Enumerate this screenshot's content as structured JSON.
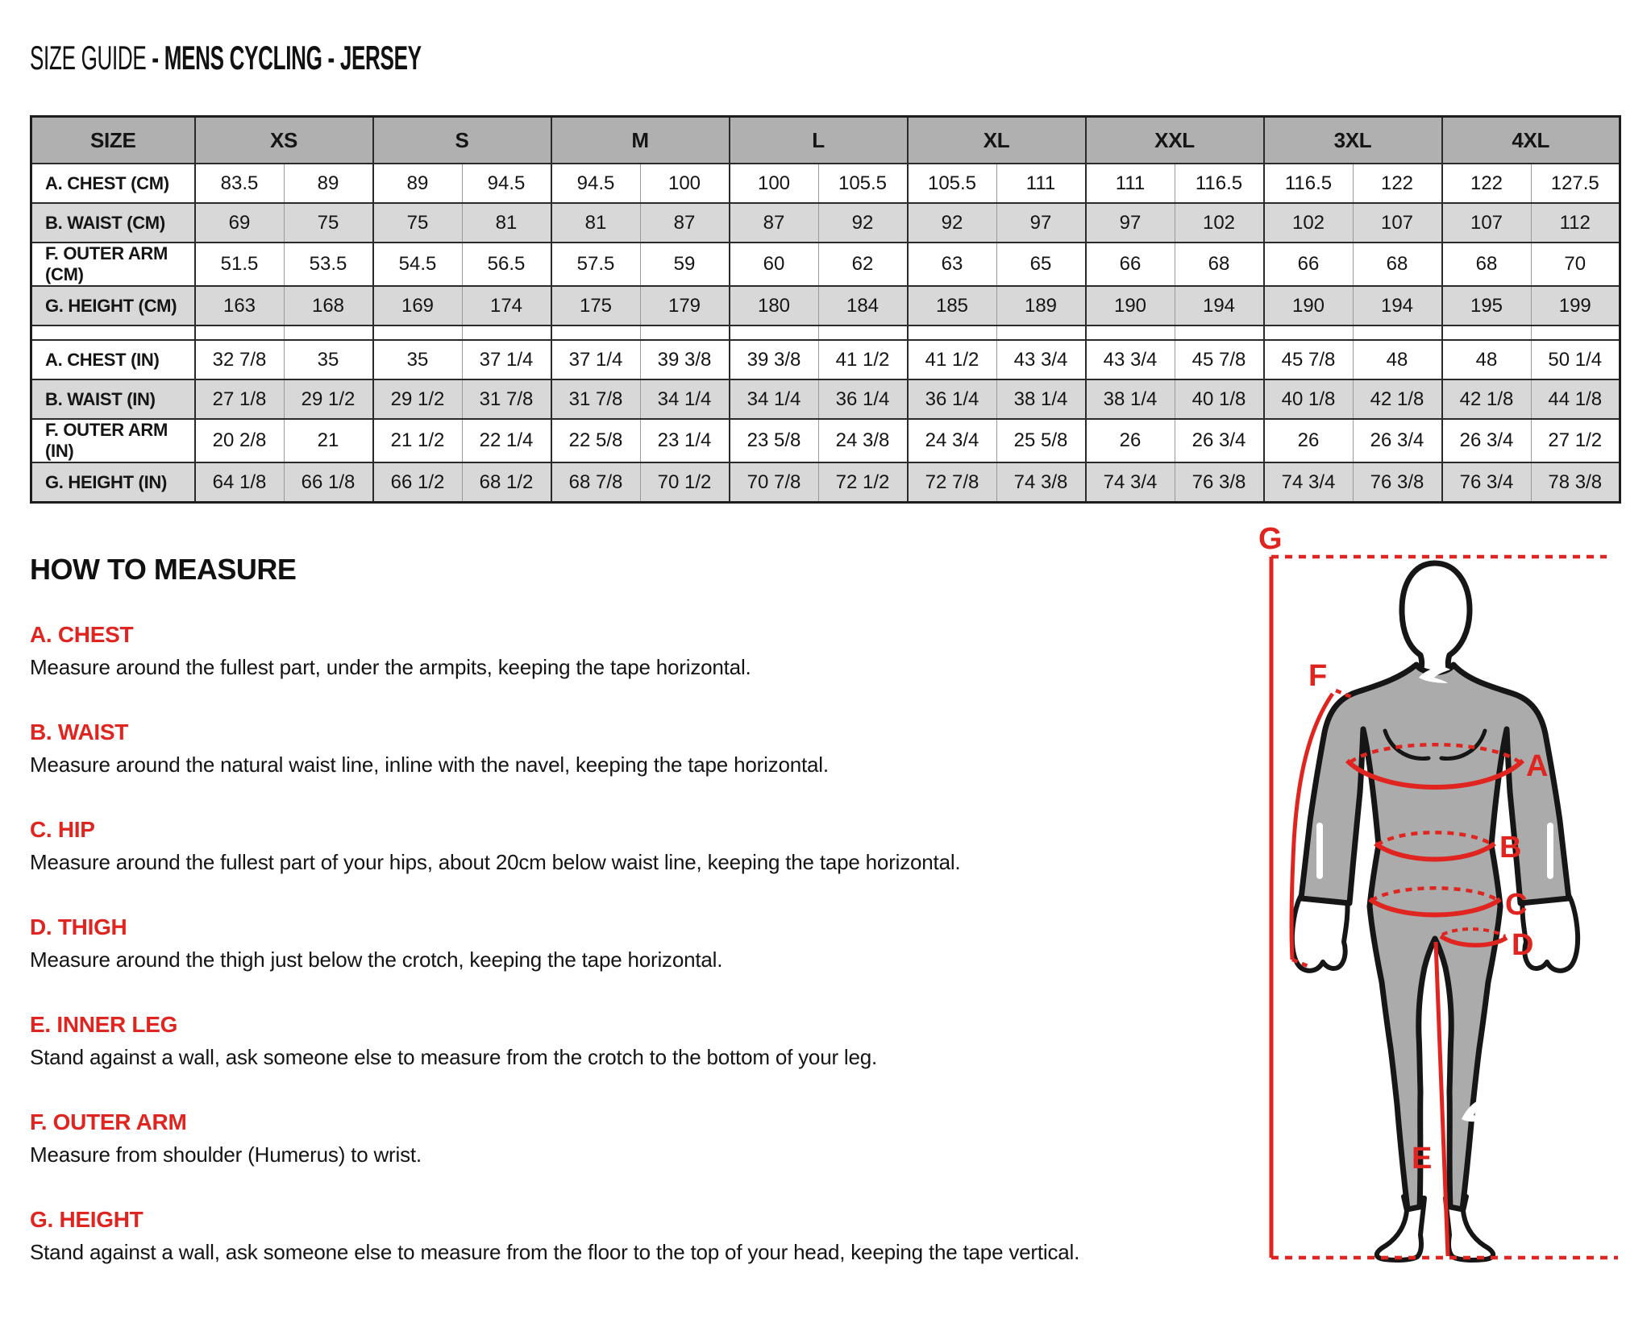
{
  "title": {
    "prefix": "SIZE GUIDE ",
    "emphasis": "- MENS CYCLING - JERSEY"
  },
  "size_table": {
    "header": {
      "size_label": "SIZE",
      "sizes": [
        "XS",
        "S",
        "M",
        "L",
        "XL",
        "XXL",
        "3XL",
        "4XL"
      ]
    },
    "rows": [
      {
        "label": "A. CHEST (CM)",
        "values": [
          "83.5",
          "89",
          "89",
          "94.5",
          "94.5",
          "100",
          "100",
          "105.5",
          "105.5",
          "111",
          "111",
          "116.5",
          "116.5",
          "122",
          "122",
          "127.5"
        ]
      },
      {
        "label": "B. WAIST (CM)",
        "values": [
          "69",
          "75",
          "75",
          "81",
          "81",
          "87",
          "87",
          "92",
          "92",
          "97",
          "97",
          "102",
          "102",
          "107",
          "107",
          "112"
        ]
      },
      {
        "label": "F. OUTER ARM (CM)",
        "values": [
          "51.5",
          "53.5",
          "54.5",
          "56.5",
          "57.5",
          "59",
          "60",
          "62",
          "63",
          "65",
          "66",
          "68",
          "66",
          "68",
          "68",
          "70"
        ]
      },
      {
        "label": "G. HEIGHT (CM)",
        "values": [
          "163",
          "168",
          "169",
          "174",
          "175",
          "179",
          "180",
          "184",
          "185",
          "189",
          "190",
          "194",
          "190",
          "194",
          "195",
          "199"
        ]
      },
      {
        "label": "A. CHEST (IN)",
        "values": [
          "32 7/8",
          "35",
          "35",
          "37 1/4",
          "37 1/4",
          "39 3/8",
          "39 3/8",
          "41 1/2",
          "41 1/2",
          "43 3/4",
          "43 3/4",
          "45 7/8",
          "45 7/8",
          "48",
          "48",
          "50 1/4"
        ]
      },
      {
        "label": "B. WAIST (IN)",
        "values": [
          "27 1/8",
          "29 1/2",
          "29 1/2",
          "31 7/8",
          "31 7/8",
          "34 1/4",
          "34 1/4",
          "36 1/4",
          "36 1/4",
          "38 1/4",
          "38 1/4",
          "40 1/8",
          "40 1/8",
          "42 1/8",
          "42 1/8",
          "44 1/8"
        ]
      },
      {
        "label": "F. OUTER ARM (IN)",
        "values": [
          "20 2/8",
          "21",
          "21 1/2",
          "22 1/4",
          "22 5/8",
          "23 1/4",
          "23 5/8",
          "24 3/8",
          "24 3/4",
          "25 5/8",
          "26",
          "26 3/4",
          "26",
          "26 3/4",
          "26 3/4",
          "27 1/2"
        ]
      },
      {
        "label": "G. HEIGHT (IN)",
        "values": [
          "64 1/8",
          "66 1/8",
          "66 1/2",
          "68 1/2",
          "68 7/8",
          "70 1/2",
          "70 7/8",
          "72 1/2",
          "72 7/8",
          "74 3/8",
          "74 3/4",
          "76 3/8",
          "74 3/4",
          "76 3/8",
          "76 3/4",
          "78 3/8"
        ]
      }
    ]
  },
  "how_to_measure": {
    "heading": "HOW TO MEASURE",
    "sections": [
      {
        "title": "A. CHEST",
        "text": "Measure around the fullest part, under the armpits, keeping the tape horizontal."
      },
      {
        "title": "B. WAIST",
        "text": "Measure around the natural waist line, inline with the navel, keeping the tape horizontal."
      },
      {
        "title": "C. HIP",
        "text": "Measure around the fullest part of your hips, about 20cm below waist line, keeping the tape horizontal."
      },
      {
        "title": "D. THIGH",
        "text": "Measure around the thigh just below the crotch, keeping the tape horizontal."
      },
      {
        "title": "E. INNER LEG",
        "text": "Stand against a wall, ask someone else to measure from the crotch to the bottom of your leg."
      },
      {
        "title": "F. OUTER ARM",
        "text": "Measure from shoulder (Humerus) to wrist."
      },
      {
        "title": "G. HEIGHT",
        "text": "Stand against a wall, ask someone else to measure from the floor to the top of your head, keeping the tape vertical."
      }
    ]
  },
  "figure": {
    "labels": {
      "a": "A",
      "b": "B",
      "c": "C",
      "d": "D",
      "e": "E",
      "f": "F",
      "g": "G"
    },
    "colors": {
      "accent_red": "#e02520",
      "suit_gray": "#ababab",
      "outline_black": "#161616",
      "table_header_gray": "#b0b0b0",
      "table_shade_gray": "#d8d8d8"
    }
  }
}
